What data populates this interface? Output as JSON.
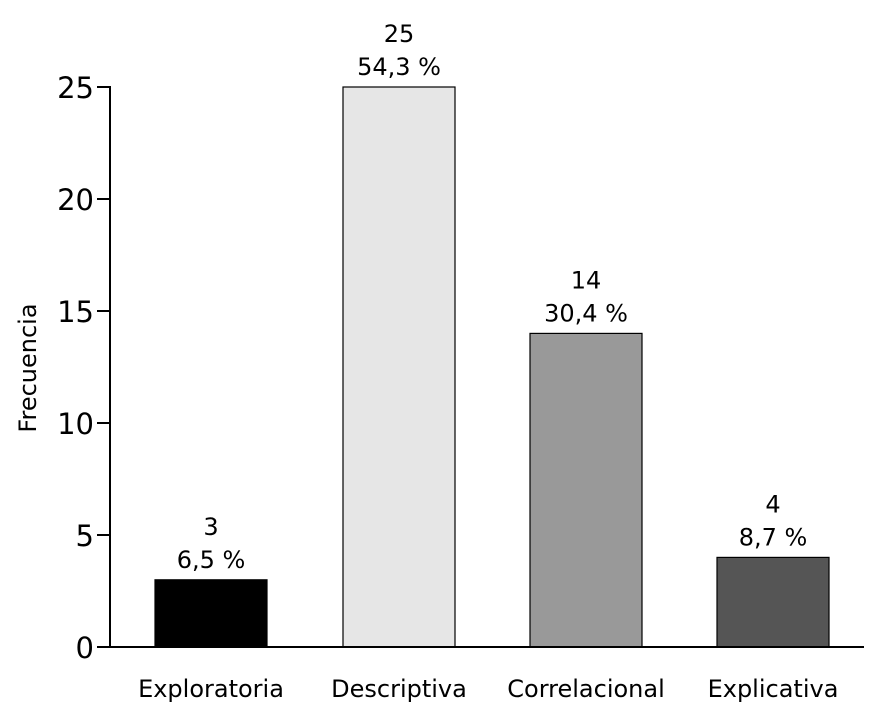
{
  "chart_data": {
    "type": "bar",
    "title": "",
    "xlabel": "",
    "ylabel": "Frecuencia",
    "ylim": [
      0,
      25
    ],
    "yticks": [
      0,
      5,
      10,
      15,
      20,
      25
    ],
    "categories": [
      "Exploratoria",
      "Descriptiva",
      "Correlacional",
      "Explicativa"
    ],
    "values": [
      3,
      25,
      14,
      4
    ],
    "percent_labels": [
      "6,5 %",
      "54,3 %",
      "30,4 %",
      "8,7 %"
    ],
    "bar_colors": [
      "#000000",
      "#e6e6e6",
      "#999999",
      "#555555"
    ],
    "grid": false,
    "legend": "none"
  }
}
